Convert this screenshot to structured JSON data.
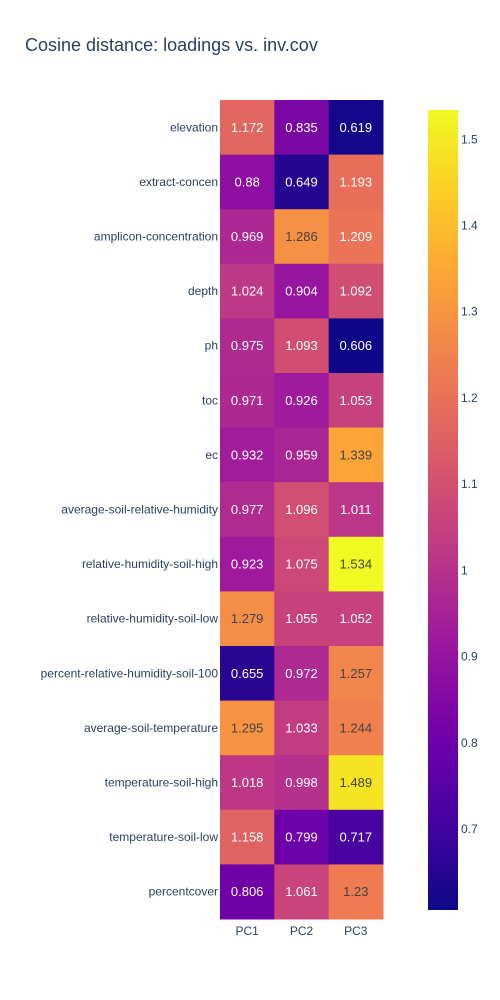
{
  "chart_data": {
    "type": "heatmap",
    "title": "Cosine distance: loadings vs. inv.cov",
    "x": [
      "PC1",
      "PC2",
      "PC3"
    ],
    "y": [
      "elevation",
      "extract-concen",
      "amplicon-concentration",
      "depth",
      "ph",
      "toc",
      "ec",
      "average-soil-relative-humidity",
      "relative-humidity-soil-high",
      "relative-humidity-soil-low",
      "percent-relative-humidity-soil-100",
      "average-soil-temperature",
      "temperature-soil-high",
      "temperature-soil-low",
      "percentcover"
    ],
    "z": [
      [
        1.172,
        0.835,
        0.619
      ],
      [
        0.88,
        0.649,
        1.193
      ],
      [
        0.969,
        1.286,
        1.209
      ],
      [
        1.024,
        0.904,
        1.092
      ],
      [
        0.975,
        1.093,
        0.606
      ],
      [
        0.971,
        0.926,
        1.053
      ],
      [
        0.932,
        0.959,
        1.339
      ],
      [
        0.977,
        1.096,
        1.011
      ],
      [
        0.923,
        1.075,
        1.534
      ],
      [
        1.279,
        1.055,
        1.052
      ],
      [
        0.655,
        0.972,
        1.257
      ],
      [
        1.295,
        1.033,
        1.244
      ],
      [
        1.018,
        0.998,
        1.489
      ],
      [
        1.158,
        0.799,
        0.717
      ],
      [
        0.806,
        1.061,
        1.23
      ]
    ],
    "colorscale": "plasma",
    "zrange": [
      0.606,
      1.534
    ],
    "colorbar_ticks": [
      0.7,
      0.8,
      0.9,
      1,
      1.1,
      1.2,
      1.3,
      1.4,
      1.5
    ]
  }
}
